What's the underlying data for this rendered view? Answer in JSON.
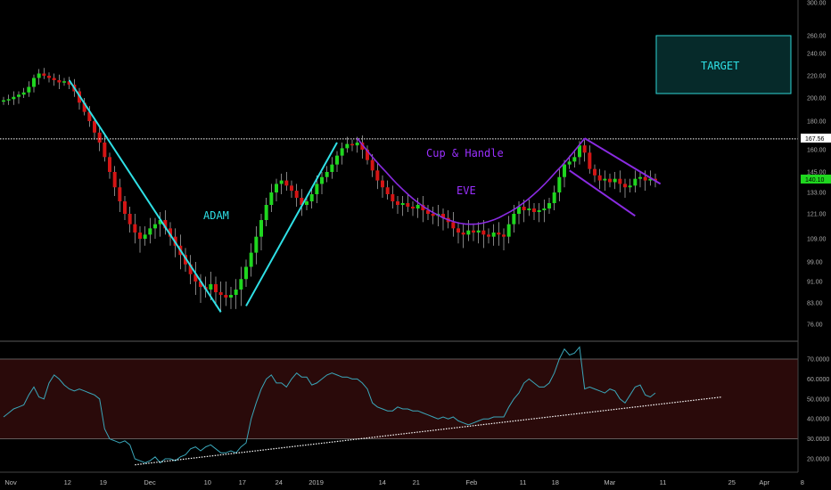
{
  "colors": {
    "background": "#000000",
    "up": "#1fd61f",
    "down": "#d41515",
    "trend": "#2fe0e6",
    "purple": "#8a2be2",
    "rsi_line": "#3aa6b9",
    "rsi_band": "#2a0a0a",
    "target_border": "#2fd6d6",
    "target_fill": "#062a2a",
    "price_badge": "#1fd61f",
    "level_badge": "#ffffff"
  },
  "annotations": {
    "adam": "ADAM",
    "cup_handle": "Cup & Handle",
    "eve": "EVE",
    "target": "TARGET"
  },
  "price_axis": [
    "300.00",
    "260.00",
    "240.00",
    "220.00",
    "200.00",
    "180.00",
    "160.00",
    "145.00",
    "133.00",
    "121.00",
    "109.00",
    "99.00",
    "91.00",
    "83.00",
    "76.00"
  ],
  "rsi_axis": [
    "70.0000",
    "60.0000",
    "50.0000",
    "40.0000",
    "30.0000",
    "20.0000"
  ],
  "date_axis": [
    "Nov",
    "12",
    "19",
    "Dec",
    "10",
    "17",
    "24",
    "2019",
    "14",
    "21",
    "Feb",
    "11",
    "18",
    "Mar",
    "11",
    "25",
    "Apr",
    "8"
  ],
  "level_badge": "167.56",
  "price_badge": "140.10",
  "chart_data": {
    "type": "candlestick",
    "series": [
      {
        "name": "price",
        "values": [
          198,
          199,
          201,
          203,
          205,
          210,
          218,
          222,
          220,
          218,
          216,
          214,
          215,
          212,
          206,
          196,
          188,
          180,
          172,
          165,
          155,
          145,
          136,
          128,
          121,
          116,
          112,
          109,
          111,
          114,
          116,
          118,
          114,
          110,
          106,
          102,
          98,
          94,
          91,
          89,
          88,
          90,
          87,
          86,
          85,
          86,
          88,
          92,
          97,
          103,
          110,
          118,
          126,
          133,
          138,
          140,
          137,
          134,
          130,
          126,
          128,
          132,
          138,
          142,
          145,
          150,
          156,
          161,
          164,
          163,
          165,
          160,
          153,
          146,
          140,
          136,
          132,
          128,
          126,
          127,
          125,
          124,
          126,
          123,
          121,
          120,
          121,
          119,
          117,
          114,
          112,
          111,
          113,
          112,
          113,
          111,
          110,
          112,
          111,
          110,
          116,
          121,
          125,
          123,
          124,
          122,
          123,
          124,
          127,
          133,
          142,
          150,
          152,
          155,
          163,
          158,
          147,
          143,
          140,
          141,
          139,
          141,
          138,
          136,
          137,
          141,
          142,
          140,
          141,
          140
        ]
      }
    ],
    "rsi": [
      41,
      43,
      45,
      46,
      47,
      52,
      56,
      51,
      50,
      58,
      62,
      60,
      57,
      55,
      54,
      55,
      54,
      53,
      52,
      50,
      35,
      30,
      29,
      28,
      29,
      27,
      20,
      19,
      18,
      19,
      21,
      18,
      20,
      20,
      19,
      21,
      22,
      25,
      26,
      24,
      26,
      27,
      25,
      23,
      23,
      24,
      23,
      26,
      28,
      40,
      48,
      55,
      60,
      62,
      58,
      58,
      56,
      60,
      63,
      61,
      61,
      57,
      58,
      60,
      62,
      63,
      62,
      61,
      61,
      60,
      60,
      58,
      55,
      48,
      46,
      45,
      44,
      44,
      46,
      45,
      45,
      44,
      44,
      43,
      42,
      41,
      40,
      41,
      40,
      41,
      39,
      38,
      37,
      38,
      39,
      40,
      40,
      41,
      41,
      41,
      46,
      50,
      53,
      58,
      60,
      58,
      56,
      56,
      58,
      63,
      70,
      75,
      72,
      73,
      76,
      55,
      56,
      55,
      54,
      53,
      55,
      54,
      50,
      48,
      52,
      56,
      57,
      52,
      51,
      53
    ],
    "levels": [
      167.56
    ],
    "trendlines": [
      "downtrend",
      "uptrend",
      "cup",
      "handle"
    ],
    "price_range": [
      76,
      300
    ],
    "rsi_range": [
      15,
      75
    ],
    "rsi_bands": [
      30,
      70
    ],
    "last_price": 140.1
  }
}
